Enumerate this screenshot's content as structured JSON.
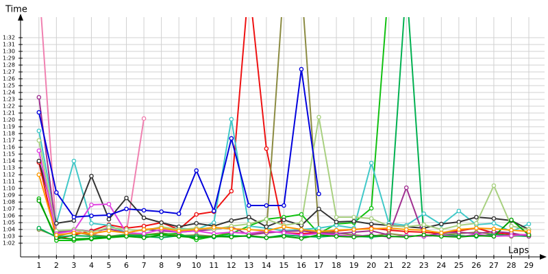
{
  "chart_data": {
    "type": "line",
    "y_label": "Time",
    "x_label": "Laps",
    "x": [
      1,
      2,
      3,
      4,
      5,
      6,
      7,
      8,
      9,
      10,
      11,
      12,
      13,
      14,
      15,
      16,
      17,
      18,
      19,
      20,
      21,
      22,
      23,
      24,
      25,
      26,
      27,
      28,
      29
    ],
    "xticks": [
      1,
      2,
      3,
      4,
      5,
      6,
      7,
      8,
      9,
      10,
      11,
      12,
      13,
      14,
      15,
      16,
      17,
      18,
      19,
      20,
      21,
      22,
      23,
      24,
      25,
      26,
      27,
      28,
      29
    ],
    "xlim": [
      -0.05,
      29.9
    ],
    "ylim": [
      60,
      95
    ],
    "grid": true,
    "yticks": [
      {
        "value": 62,
        "label": "1:02"
      },
      {
        "value": 63,
        "label": "1:03"
      },
      {
        "value": 64,
        "label": "1:04"
      },
      {
        "value": 65,
        "label": "1:05"
      },
      {
        "value": 66,
        "label": "1:06"
      },
      {
        "value": 67,
        "label": "1:07"
      },
      {
        "value": 68,
        "label": "1:08"
      },
      {
        "value": 69,
        "label": "1:09"
      },
      {
        "value": 70,
        "label": "1:10"
      },
      {
        "value": 71,
        "label": "1:11"
      },
      {
        "value": 72,
        "label": "1:12"
      },
      {
        "value": 73,
        "label": "1:13"
      },
      {
        "value": 74,
        "label": "1:14"
      },
      {
        "value": 75,
        "label": "1:15"
      },
      {
        "value": 76,
        "label": "1:16"
      },
      {
        "value": 77,
        "label": "1:17"
      },
      {
        "value": 78,
        "label": "1:18"
      },
      {
        "value": 79,
        "label": "1:19"
      },
      {
        "value": 80,
        "label": "1:20"
      },
      {
        "value": 81,
        "label": "1:21"
      },
      {
        "value": 82,
        "label": "1:22"
      },
      {
        "value": 83,
        "label": "1:23"
      },
      {
        "value": 84,
        "label": "1:24"
      },
      {
        "value": 85,
        "label": "1:25"
      },
      {
        "value": 86,
        "label": "1:26"
      },
      {
        "value": 87,
        "label": "1:27"
      },
      {
        "value": 88,
        "label": "1:28"
      },
      {
        "value": 89,
        "label": "1:29"
      },
      {
        "value": 90,
        "label": "1:30"
      },
      {
        "value": 91,
        "label": "1:31"
      },
      {
        "value": 92,
        "label": "1:32"
      }
    ],
    "series": [
      {
        "color": "#ee1111",
        "values": [
          73.8,
          62.6,
          63.2,
          63.8,
          64.7,
          64.2,
          64.5,
          65.0,
          64.0,
          66.2,
          66.6,
          69.6,
          100,
          75.8,
          63.5,
          63.4,
          63.5,
          63.8,
          64.0,
          64.2,
          63.9,
          63.7,
          63.6,
          63.4,
          63.8,
          64.2,
          63.5,
          63.3,
          63.2
        ]
      },
      {
        "color": "#f080b0",
        "values": [
          100,
          63.5,
          64.0,
          63.0,
          64.5,
          63.6,
          80.2,
          null,
          null,
          null,
          null,
          null,
          null,
          null,
          null,
          null,
          null,
          null,
          null,
          null,
          null,
          null,
          null,
          null,
          null,
          null,
          null,
          null,
          null
        ]
      },
      {
        "color": "#8a8a40",
        "values": [
          64.0,
          63.0,
          63.6,
          63.2,
          63.0,
          63.3,
          63.2,
          63.5,
          63.1,
          63.2,
          63.0,
          63.6,
          63.4,
          63.6,
          100,
          100,
          63.8,
          63.5,
          63.2,
          63.0,
          63.4,
          63.1,
          63.0,
          63.2,
          63.4,
          63.6,
          63.3,
          63.0,
          63.2
        ]
      },
      {
        "color": "#10c010",
        "values": [
          68.5,
          62.4,
          62.4,
          62.6,
          62.8,
          63.0,
          63.2,
          63.3,
          63.4,
          62.5,
          63.0,
          63.4,
          64.5,
          65.5,
          65.8,
          66.2,
          63.4,
          64.8,
          65.0,
          67.1,
          100,
          null,
          null,
          null,
          null,
          null,
          null,
          null,
          null
        ]
      },
      {
        "color": "#00b050",
        "values": [
          64.2,
          62.9,
          63.1,
          63.0,
          62.9,
          63.2,
          63.0,
          62.8,
          63.1,
          63.0,
          62.9,
          63.1,
          63.0,
          62.8,
          63.2,
          63.0,
          62.9,
          63.1,
          63.0,
          62.9,
          63.1,
          100,
          63.0,
          63.2,
          63.1,
          63.0,
          63.3,
          63.1,
          63.0
        ]
      },
      {
        "color": "#40c8c8",
        "values": [
          78.4,
          64.9,
          74.0,
          64.9,
          64.6,
          63.5,
          64.0,
          63.8,
          64.2,
          64.0,
          65.0,
          80.1,
          64.5,
          64.2,
          63.8,
          64.0,
          64.2,
          64.6,
          64.2,
          73.7,
          64.9,
          64.6,
          66.3,
          64.7,
          66.7,
          64.7,
          64.9,
          63.7,
          64.8
        ]
      },
      {
        "color": "#333333",
        "values": [
          74.0,
          64.9,
          65.3,
          71.8,
          65.5,
          68.6,
          65.7,
          65.0,
          64.4,
          64.9,
          64.5,
          65.3,
          65.8,
          64.4,
          65.4,
          64.6,
          67.0,
          65.1,
          65.2,
          64.8,
          64.6,
          64.4,
          64.2,
          64.8,
          65.1,
          65.8,
          65.6,
          65.3,
          64.0
        ]
      },
      {
        "color": "#a03090",
        "values": [
          83.3,
          63.6,
          64.0,
          63.7,
          64.1,
          63.5,
          64.0,
          63.8,
          63.6,
          63.8,
          64.0,
          64.4,
          63.2,
          63.5,
          63.7,
          63.8,
          63.5,
          63.4,
          63.6,
          63.8,
          63.2,
          70.1,
          63.0,
          63.5,
          63.6,
          63.4,
          63.7,
          63.5,
          63.0
        ]
      },
      {
        "color": "#a8d080",
        "values": [
          77.0,
          63.8,
          64.0,
          63.6,
          64.3,
          64.0,
          63.8,
          64.4,
          64.0,
          64.2,
          64.0,
          64.5,
          64.8,
          65.5,
          64.6,
          65.0,
          80.4,
          65.8,
          65.8,
          65.6,
          64.5,
          64.4,
          64.7,
          64.0,
          64.6,
          64.9,
          70.4,
          64.5,
          64.0
        ]
      },
      {
        "color": "#e040e0",
        "values": [
          75.5,
          63.4,
          63.8,
          67.6,
          67.7,
          63.5,
          63.4,
          64.0,
          63.6,
          63.8,
          63.4,
          63.6,
          63.4,
          63.8,
          63.5,
          63.2,
          63.4,
          63.2,
          63.0,
          63.2,
          62.9,
          63.1,
          63.0,
          63.2,
          62.9,
          63.3,
          63.0,
          63.1,
          63.3
        ]
      },
      {
        "color": "#00a000",
        "values": [
          68.2,
          62.8,
          62.6,
          62.7,
          62.9,
          63.0,
          62.8,
          63.2,
          63.0,
          62.8,
          63.0,
          62.9,
          63.1,
          62.8,
          63.0,
          62.7,
          63.2,
          63.0,
          62.9,
          63.1,
          63.0,
          62.9,
          63.2,
          63.0,
          62.9,
          63.1,
          63.0,
          65.4,
          63.2
        ]
      },
      {
        "color": "#ff9900",
        "values": [
          72.0,
          63.2,
          63.5,
          63.4,
          63.8,
          63.5,
          64.0,
          64.2,
          63.8,
          64.0,
          64.3,
          64.1,
          64.0,
          63.8,
          64.4,
          64.0,
          63.7,
          63.9,
          64.0,
          64.1,
          64.2,
          64.0,
          63.9,
          63.5,
          64.0,
          64.2,
          64.1,
          63.9,
          63.7
        ]
      },
      {
        "color": "#0000dd",
        "values": [
          81.1,
          69.4,
          65.8,
          66.0,
          66.1,
          67.0,
          66.8,
          66.6,
          66.3,
          72.6,
          66.7,
          77.3,
          67.5,
          67.5,
          67.5,
          87.4,
          69.2,
          null,
          null,
          null,
          null,
          null,
          null,
          null,
          null,
          null,
          null,
          null,
          null
        ]
      }
    ]
  }
}
